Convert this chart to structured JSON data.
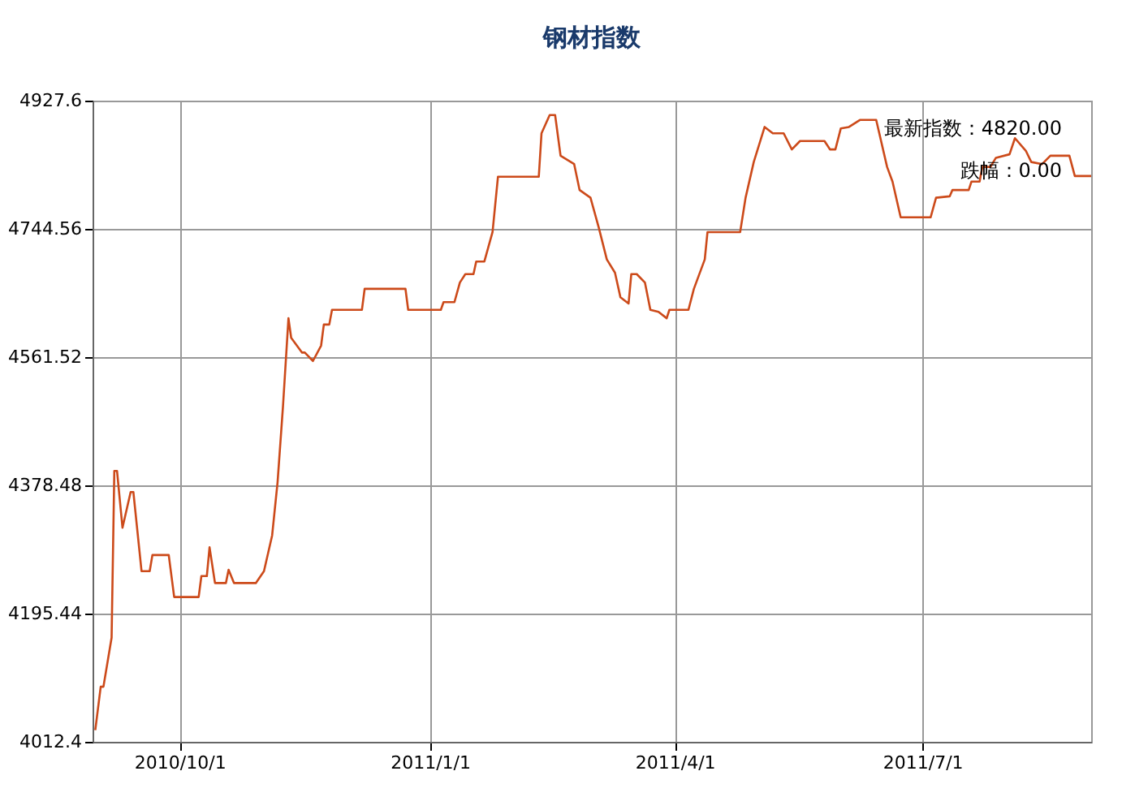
{
  "chart_data": {
    "type": "line",
    "title": "钢材指数",
    "annotations": [
      "最新指数：4820.00",
      "跌幅：0.00"
    ],
    "x": [
      "2010-08-31",
      "2010-09-02",
      "2010-09-03",
      "2010-09-06",
      "2010-09-07",
      "2010-09-08",
      "2010-09-10",
      "2010-09-13",
      "2010-09-14",
      "2010-09-17",
      "2010-09-20",
      "2010-09-21",
      "2010-09-27",
      "2010-09-29",
      "2010-10-08",
      "2010-10-09",
      "2010-10-11",
      "2010-10-12",
      "2010-10-14",
      "2010-10-18",
      "2010-10-19",
      "2010-10-21",
      "2010-10-29",
      "2010-11-01",
      "2010-11-04",
      "2010-11-06",
      "2010-11-08",
      "2010-11-10",
      "2010-11-11",
      "2010-11-15",
      "2010-11-16",
      "2010-11-19",
      "2010-11-22",
      "2010-11-23",
      "2010-11-25",
      "2010-11-26",
      "2010-12-07",
      "2010-12-08",
      "2010-12-23",
      "2010-12-24",
      "2011-01-05",
      "2011-01-06",
      "2011-01-10",
      "2011-01-12",
      "2011-01-14",
      "2011-01-17",
      "2011-01-18",
      "2011-01-21",
      "2011-01-24",
      "2011-01-26",
      "2011-02-10",
      "2011-02-11",
      "2011-02-14",
      "2011-02-16",
      "2011-02-18",
      "2011-02-23",
      "2011-02-25",
      "2011-03-01",
      "2011-03-04",
      "2011-03-07",
      "2011-03-10",
      "2011-03-12",
      "2011-03-15",
      "2011-03-16",
      "2011-03-18",
      "2011-03-21",
      "2011-03-23",
      "2011-03-26",
      "2011-03-29",
      "2011-03-30",
      "2011-04-06",
      "2011-04-08",
      "2011-04-12",
      "2011-04-13",
      "2011-04-25",
      "2011-04-27",
      "2011-04-30",
      "2011-05-04",
      "2011-05-07",
      "2011-05-11",
      "2011-05-14",
      "2011-05-17",
      "2011-05-26",
      "2011-05-28",
      "2011-05-30",
      "2011-06-01",
      "2011-06-04",
      "2011-06-08",
      "2011-06-14",
      "2011-06-18",
      "2011-06-20",
      "2011-06-23",
      "2011-07-04",
      "2011-07-06",
      "2011-07-11",
      "2011-07-12",
      "2011-07-18",
      "2011-07-19",
      "2011-07-22",
      "2011-07-23",
      "2011-07-26",
      "2011-07-28",
      "2011-08-02",
      "2011-08-04",
      "2011-08-08",
      "2011-08-10",
      "2011-08-14",
      "2011-08-17",
      "2011-08-24",
      "2011-08-26",
      "2011-09-01"
    ],
    "series": [
      {
        "color": "#cc4a1a",
        "values": [
          4029,
          4091,
          4091,
          4161,
          4399,
          4399,
          4318,
          4369,
          4369,
          4256,
          4256,
          4279,
          4279,
          4219,
          4219,
          4249,
          4249,
          4290,
          4239,
          4239,
          4258,
          4239,
          4239,
          4256,
          4307,
          4383,
          4492,
          4617,
          4589,
          4568,
          4568,
          4556,
          4578,
          4608,
          4608,
          4629,
          4629,
          4659,
          4659,
          4629,
          4629,
          4640,
          4640,
          4668,
          4680,
          4680,
          4698,
          4698,
          4740,
          4819,
          4819,
          4881,
          4907,
          4907,
          4849,
          4837,
          4800,
          4789,
          4747,
          4701,
          4682,
          4647,
          4638,
          4680,
          4680,
          4668,
          4629,
          4626,
          4617,
          4629,
          4629,
          4659,
          4701,
          4740,
          4740,
          4789,
          4840,
          4890,
          4881,
          4881,
          4858,
          4870,
          4870,
          4858,
          4858,
          4888,
          4890,
          4900,
          4900,
          4833,
          4812,
          4761,
          4761,
          4789,
          4791,
          4800,
          4800,
          4812,
          4812,
          4833,
          4833,
          4846,
          4851,
          4874,
          4856,
          4840,
          4837,
          4849,
          4849,
          4820,
          4820
        ]
      }
    ],
    "xlim": [
      "2010-08-30",
      "2011-09-01"
    ],
    "xticks": [
      {
        "value": "2010-10-01",
        "label": "2010/10/1"
      },
      {
        "value": "2011-01-01",
        "label": "2011/1/1"
      },
      {
        "value": "2011-04-01",
        "label": "2011/4/1"
      },
      {
        "value": "2011-07-01",
        "label": "2011/7/1"
      }
    ],
    "ylim": [
      4012.4,
      4927.6
    ],
    "yticks": [
      4012.4,
      4195.44,
      4378.48,
      4561.52,
      4744.56,
      4927.6
    ],
    "grid": true,
    "marker": "none",
    "line_style": "solid"
  }
}
